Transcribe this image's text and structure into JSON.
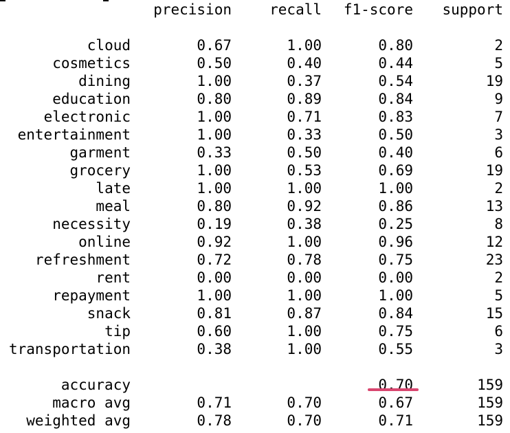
{
  "report": {
    "headers": {
      "label": "",
      "precision": "precision",
      "recall": "recall",
      "f1": "f1-score",
      "support": "support"
    },
    "classes": [
      {
        "label": "cloud",
        "precision": "0.67",
        "recall": "1.00",
        "f1": "0.80",
        "support": "2"
      },
      {
        "label": "cosmetics",
        "precision": "0.50",
        "recall": "0.40",
        "f1": "0.44",
        "support": "5"
      },
      {
        "label": "dining",
        "precision": "1.00",
        "recall": "0.37",
        "f1": "0.54",
        "support": "19"
      },
      {
        "label": "education",
        "precision": "0.80",
        "recall": "0.89",
        "f1": "0.84",
        "support": "9"
      },
      {
        "label": "electronic",
        "precision": "1.00",
        "recall": "0.71",
        "f1": "0.83",
        "support": "7"
      },
      {
        "label": "entertainment",
        "precision": "1.00",
        "recall": "0.33",
        "f1": "0.50",
        "support": "3"
      },
      {
        "label": "garment",
        "precision": "0.33",
        "recall": "0.50",
        "f1": "0.40",
        "support": "6"
      },
      {
        "label": "grocery",
        "precision": "1.00",
        "recall": "0.53",
        "f1": "0.69",
        "support": "19"
      },
      {
        "label": "late",
        "precision": "1.00",
        "recall": "1.00",
        "f1": "1.00",
        "support": "2"
      },
      {
        "label": "meal",
        "precision": "0.80",
        "recall": "0.92",
        "f1": "0.86",
        "support": "13"
      },
      {
        "label": "necessity",
        "precision": "0.19",
        "recall": "0.38",
        "f1": "0.25",
        "support": "8"
      },
      {
        "label": "online",
        "precision": "0.92",
        "recall": "1.00",
        "f1": "0.96",
        "support": "12"
      },
      {
        "label": "refreshment",
        "precision": "0.72",
        "recall": "0.78",
        "f1": "0.75",
        "support": "23"
      },
      {
        "label": "rent",
        "precision": "0.00",
        "recall": "0.00",
        "f1": "0.00",
        "support": "2"
      },
      {
        "label": "repayment",
        "precision": "1.00",
        "recall": "1.00",
        "f1": "1.00",
        "support": "5"
      },
      {
        "label": "snack",
        "precision": "0.81",
        "recall": "0.87",
        "f1": "0.84",
        "support": "15"
      },
      {
        "label": "tip",
        "precision": "0.60",
        "recall": "1.00",
        "f1": "0.75",
        "support": "6"
      },
      {
        "label": "transportation",
        "precision": "0.38",
        "recall": "1.00",
        "f1": "0.55",
        "support": "3"
      }
    ],
    "summary": [
      {
        "label": "accuracy",
        "precision": "",
        "recall": "",
        "f1": "0.70",
        "support": "159"
      },
      {
        "label": "macro avg",
        "precision": "0.71",
        "recall": "0.70",
        "f1": "0.67",
        "support": "159"
      },
      {
        "label": "weighted avg",
        "precision": "0.78",
        "recall": "0.70",
        "f1": "0.71",
        "support": "159"
      }
    ]
  },
  "colors": {
    "text": "#000000",
    "background": "#ffffff",
    "annotation_underline": "#d9466f"
  }
}
